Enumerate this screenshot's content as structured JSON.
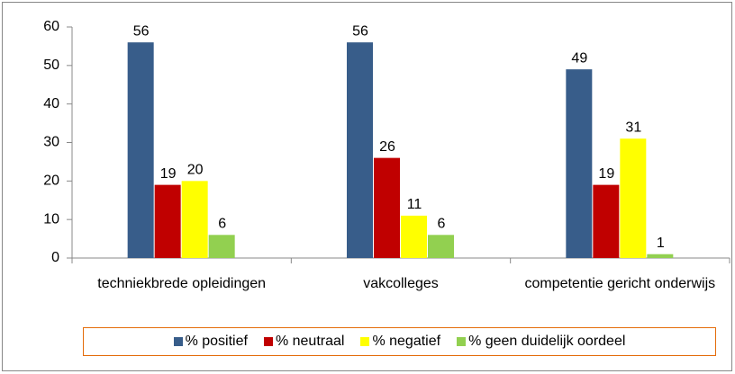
{
  "chart_data": {
    "type": "bar",
    "categories": [
      "techniekbrede opleidingen",
      "vakcolleges",
      "competentie gericht onderwijs"
    ],
    "series": [
      {
        "name": "% positief",
        "color": "#385d8a",
        "values": [
          56,
          56,
          49
        ]
      },
      {
        "name": "% neutraal",
        "color": "#c00000",
        "values": [
          19,
          26,
          19
        ]
      },
      {
        "name": "% negatief",
        "color": "#ffff00",
        "values": [
          20,
          11,
          31
        ]
      },
      {
        "name": "% geen duidelijk oordeel",
        "color": "#92d050",
        "values": [
          6,
          6,
          1
        ]
      }
    ],
    "ylim": [
      0,
      60
    ],
    "yticks": [
      0,
      10,
      20,
      30,
      40,
      50,
      60
    ],
    "grid": false,
    "legend": "bottom"
  }
}
